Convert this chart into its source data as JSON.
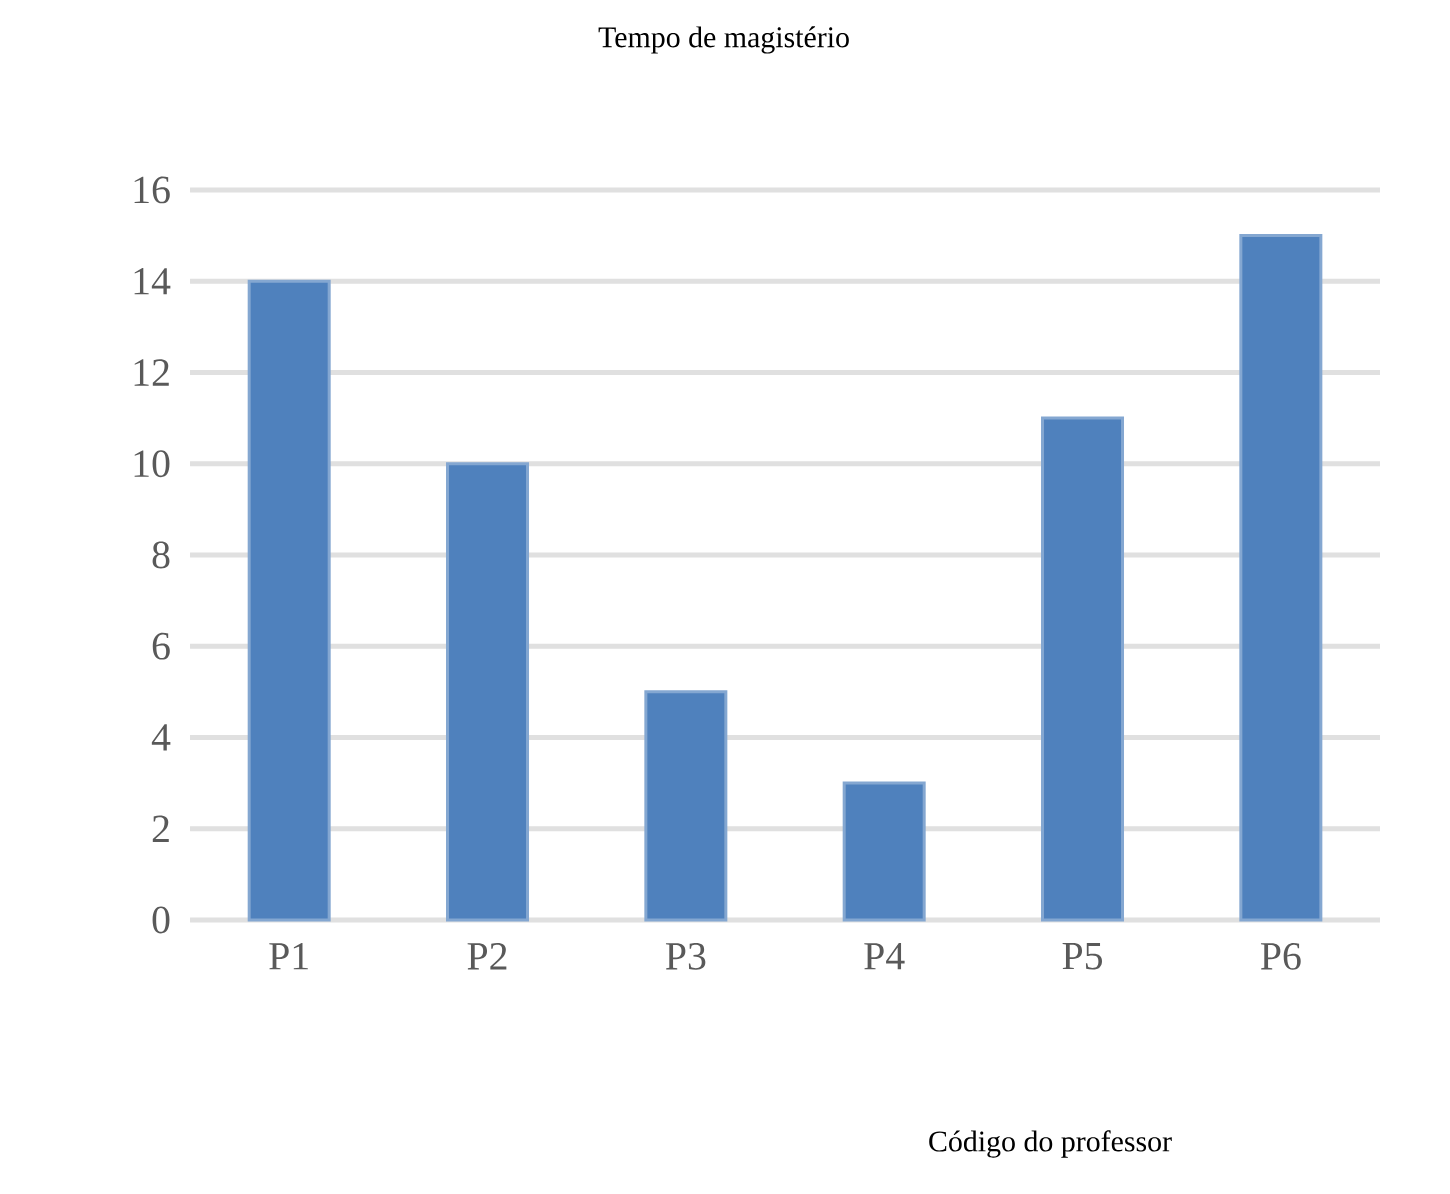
{
  "chart_data": {
    "type": "bar",
    "title": "Tempo de magistério",
    "annotations": [
      "Código do professor"
    ],
    "categories": [
      "P1",
      "P2",
      "P3",
      "P4",
      "P5",
      "P6"
    ],
    "values": [
      14,
      10,
      5,
      3,
      11,
      15
    ],
    "color": "#4f81bd",
    "ylim": [
      0,
      16
    ],
    "yticks": [
      0,
      2,
      4,
      6,
      8,
      10,
      12,
      14,
      16
    ],
    "grid": "y"
  }
}
